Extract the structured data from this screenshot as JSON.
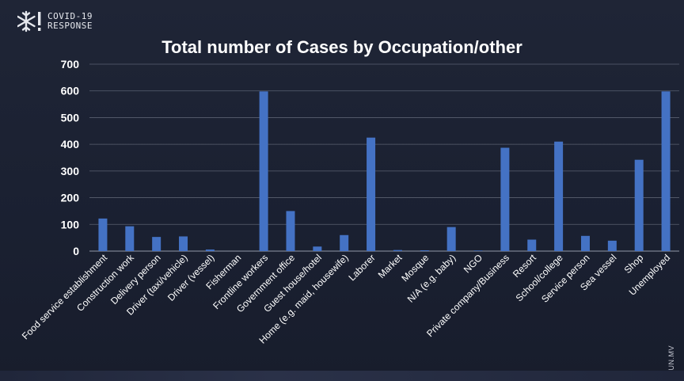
{
  "logo": {
    "line1": "COVID-19",
    "line2": "RESPONSE",
    "mark_icon": "snowflake-icon"
  },
  "watermark": "SUN.MV",
  "colors": {
    "background": "#1c2233",
    "bar": "#4472c4",
    "grid": "#5a6070",
    "text": "#ffffff"
  },
  "chart_data": {
    "type": "bar",
    "title": "Total number of Cases by Occupation/other",
    "xlabel": "",
    "ylabel": "",
    "ylim": [
      0,
      700
    ],
    "yticks": [
      0,
      100,
      200,
      300,
      400,
      500,
      600,
      700
    ],
    "grid": true,
    "legend": "none",
    "categories": [
      "Food service establishment",
      "Construction work",
      "Delivery person",
      "Driver (taxi/vehicle)",
      "Driver (vessel)",
      "Fisherman",
      "Frontline workers",
      "Government office",
      "Guest house/hotel",
      "Home (e.g. maid, housewife)",
      "Laborer",
      "Market",
      "Mosque",
      "N/A (e.g. baby)",
      "NGO",
      "Private company/Business",
      "Resort",
      "School/college",
      "Service person",
      "Sea vessel",
      "Shop",
      "Unemployed"
    ],
    "values": [
      122,
      93,
      53,
      55,
      6,
      0,
      598,
      150,
      17,
      60,
      425,
      4,
      3,
      90,
      2,
      387,
      43,
      410,
      57,
      39,
      342,
      598
    ]
  }
}
